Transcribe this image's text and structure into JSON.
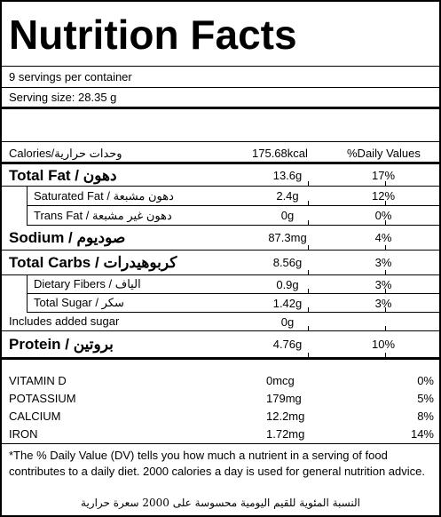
{
  "header": {
    "title": "Nutrition Facts",
    "servings": "9 servings per container",
    "serving_size": "Serving size: 28.35 g"
  },
  "calories": {
    "label": "Calories/وحدات حرارية",
    "value": "175.68kcal",
    "dv_header": "%Daily Values"
  },
  "nutrients": [
    {
      "name": "Total Fat / دهون",
      "amount": "13.6g",
      "dv": "17%"
    },
    {
      "name": "Saturated Fat / دهون مشبعة",
      "amount": "2.4g",
      "dv": "12%"
    },
    {
      "name": "Trans Fat / دهون غير مشبعة",
      "amount": "0g",
      "dv": "0%"
    },
    {
      "name": "Sodium / صوديوم",
      "amount": "87.3mg",
      "dv": "4%"
    },
    {
      "name": "Total Carbs / كربوهيدرات",
      "amount": "8.56g",
      "dv": "3%"
    },
    {
      "name": "Dietary Fibers / الياف",
      "amount": "0.9g",
      "dv": "3%"
    },
    {
      "name": "Total Sugar / سكر",
      "amount": "1.42g",
      "dv": "3%"
    },
    {
      "name": "Includes added sugar",
      "amount": "0g"
    },
    {
      "name": "Protein / بروتين",
      "amount": "4.76g",
      "dv": "10%"
    }
  ],
  "vitamins": [
    {
      "name": "VITAMIN D",
      "amount": "0mcg",
      "dv": "0%"
    },
    {
      "name": "POTASSIUM",
      "amount": "179mg",
      "dv": "5%"
    },
    {
      "name": "CALCIUM",
      "amount": "12.2mg",
      "dv": "8%"
    },
    {
      "name": "IRON",
      "amount": "1.72mg",
      "dv": "14%"
    }
  ],
  "footnote": {
    "english": "*The % Daily Value (DV) tells you how much a nutrient in a serving of food contributes to a daily diet. 2000 calories a day is used for general nutrition advice.",
    "arabic": "النسبة المئوية للقيم اليومية محسوسة على 2000 سعرة حرارية"
  }
}
